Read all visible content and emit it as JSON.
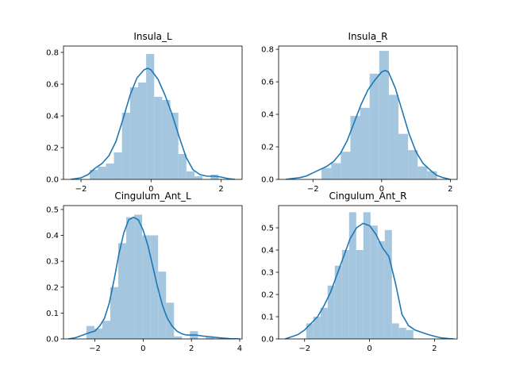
{
  "chart_data": [
    {
      "type": "bar",
      "title": "Insula_L",
      "xlim": [
        -2.5,
        2.6
      ],
      "ylim": [
        0,
        0.84
      ],
      "xticks": [
        -2,
        0,
        2
      ],
      "xtick_labels": [
        "−2",
        "0",
        "2"
      ],
      "yticks": [
        0.0,
        0.2,
        0.4,
        0.6,
        0.8
      ],
      "ytick_labels": [
        "0.0",
        "0.2",
        "0.4",
        "0.6",
        "0.8"
      ],
      "bar_color": "#a4c6df",
      "line_color": "#1f77b4",
      "bins": [
        {
          "x0": -1.75,
          "x1": -1.52,
          "value": 0.06
        },
        {
          "x0": -1.52,
          "x1": -1.29,
          "value": 0.08
        },
        {
          "x0": -1.29,
          "x1": -1.06,
          "value": 0.1
        },
        {
          "x0": -1.06,
          "x1": -0.83,
          "value": 0.17
        },
        {
          "x0": -0.83,
          "x1": -0.6,
          "value": 0.42
        },
        {
          "x0": -0.6,
          "x1": -0.37,
          "value": 0.58
        },
        {
          "x0": -0.37,
          "x1": -0.14,
          "value": 0.61
        },
        {
          "x0": -0.14,
          "x1": 0.09,
          "value": 0.79
        },
        {
          "x0": 0.09,
          "x1": 0.32,
          "value": 0.52
        },
        {
          "x0": 0.32,
          "x1": 0.55,
          "value": 0.5
        },
        {
          "x0": 0.55,
          "x1": 0.78,
          "value": 0.42
        },
        {
          "x0": 0.78,
          "x1": 1.01,
          "value": 0.16
        },
        {
          "x0": 1.01,
          "x1": 1.24,
          "value": 0.05
        },
        {
          "x0": 1.24,
          "x1": 1.47,
          "value": 0.02
        },
        {
          "x0": 1.47,
          "x1": 1.7,
          "value": 0.0
        },
        {
          "x0": 1.7,
          "x1": 1.93,
          "value": 0.03
        }
      ],
      "kde": {
        "x": [
          -2.3,
          -2.0,
          -1.8,
          -1.6,
          -1.4,
          -1.2,
          -1.0,
          -0.8,
          -0.6,
          -0.4,
          -0.2,
          -0.1,
          0.0,
          0.2,
          0.4,
          0.6,
          0.8,
          1.0,
          1.2,
          1.4,
          1.6,
          1.8,
          2.0,
          2.2,
          2.4
        ],
        "y": [
          0.0,
          0.01,
          0.03,
          0.07,
          0.1,
          0.15,
          0.24,
          0.38,
          0.53,
          0.64,
          0.69,
          0.7,
          0.69,
          0.63,
          0.53,
          0.41,
          0.27,
          0.14,
          0.06,
          0.03,
          0.02,
          0.02,
          0.015,
          0.005,
          0.0
        ]
      }
    },
    {
      "type": "bar",
      "title": "Insula_R",
      "xlim": [
        -3.0,
        2.2
      ],
      "ylim": [
        0,
        0.82
      ],
      "xticks": [
        -2,
        0,
        2
      ],
      "xtick_labels": [
        "−2",
        "0",
        "2"
      ],
      "yticks": [
        0.0,
        0.2,
        0.4,
        0.6,
        0.8
      ],
      "ytick_labels": [
        "0.0",
        "0.2",
        "0.4",
        "0.6",
        "0.8"
      ],
      "bar_color": "#a4c6df",
      "line_color": "#1f77b4",
      "bins": [
        {
          "x0": -1.75,
          "x1": -1.47,
          "value": 0.07
        },
        {
          "x0": -1.47,
          "x1": -1.19,
          "value": 0.1
        },
        {
          "x0": -1.19,
          "x1": -0.91,
          "value": 0.17
        },
        {
          "x0": -0.91,
          "x1": -0.63,
          "value": 0.39
        },
        {
          "x0": -0.63,
          "x1": -0.35,
          "value": 0.44
        },
        {
          "x0": -0.35,
          "x1": -0.07,
          "value": 0.65
        },
        {
          "x0": -0.07,
          "x1": 0.21,
          "value": 0.79
        },
        {
          "x0": 0.21,
          "x1": 0.49,
          "value": 0.52
        },
        {
          "x0": 0.49,
          "x1": 0.77,
          "value": 0.28
        },
        {
          "x0": 0.77,
          "x1": 1.05,
          "value": 0.18
        },
        {
          "x0": 1.05,
          "x1": 1.33,
          "value": 0.08
        },
        {
          "x0": 1.33,
          "x1": 1.61,
          "value": 0.05
        }
      ],
      "kde": {
        "x": [
          -2.8,
          -2.6,
          -2.4,
          -2.2,
          -2.0,
          -1.8,
          -1.6,
          -1.4,
          -1.2,
          -1.0,
          -0.8,
          -0.6,
          -0.4,
          -0.2,
          0.0,
          0.1,
          0.2,
          0.4,
          0.6,
          0.8,
          1.0,
          1.2,
          1.4,
          1.6,
          1.8,
          2.0
        ],
        "y": [
          0.0,
          0.005,
          0.01,
          0.02,
          0.04,
          0.06,
          0.08,
          0.11,
          0.16,
          0.24,
          0.35,
          0.46,
          0.55,
          0.61,
          0.66,
          0.67,
          0.66,
          0.56,
          0.42,
          0.28,
          0.17,
          0.1,
          0.06,
          0.025,
          0.01,
          0.0
        ]
      }
    },
    {
      "type": "bar",
      "title": "Cingulum_Ant_L",
      "xlim": [
        -3.3,
        4.1
      ],
      "ylim": [
        0,
        0.515
      ],
      "xticks": [
        -2,
        0,
        2,
        4
      ],
      "xtick_labels": [
        "−2",
        "0",
        "2",
        "4"
      ],
      "yticks": [
        0.0,
        0.1,
        0.2,
        0.3,
        0.4,
        0.5
      ],
      "ytick_labels": [
        "0.0",
        "0.1",
        "0.2",
        "0.3",
        "0.4",
        "0.5"
      ],
      "bar_color": "#a4c6df",
      "line_color": "#1f77b4",
      "bins": [
        {
          "x0": -2.35,
          "x1": -2.02,
          "value": 0.05
        },
        {
          "x0": -2.02,
          "x1": -1.69,
          "value": 0.04
        },
        {
          "x0": -1.69,
          "x1": -1.36,
          "value": 0.07
        },
        {
          "x0": -1.36,
          "x1": -1.03,
          "value": 0.2
        },
        {
          "x0": -1.03,
          "x1": -0.7,
          "value": 0.37
        },
        {
          "x0": -0.7,
          "x1": -0.37,
          "value": 0.47
        },
        {
          "x0": -0.37,
          "x1": -0.04,
          "value": 0.48
        },
        {
          "x0": -0.04,
          "x1": 0.29,
          "value": 0.4
        },
        {
          "x0": 0.29,
          "x1": 0.62,
          "value": 0.4
        },
        {
          "x0": 0.62,
          "x1": 0.95,
          "value": 0.26
        },
        {
          "x0": 0.95,
          "x1": 1.28,
          "value": 0.14
        },
        {
          "x0": 1.28,
          "x1": 1.61,
          "value": 0.01
        },
        {
          "x0": 1.61,
          "x1": 1.94,
          "value": 0.0
        },
        {
          "x0": 1.94,
          "x1": 2.27,
          "value": 0.03
        },
        {
          "x0": 2.27,
          "x1": 2.6,
          "value": 0.0
        },
        {
          "x0": 2.6,
          "x1": 2.93,
          "value": 0.01
        }
      ],
      "kde": {
        "x": [
          -3.1,
          -2.8,
          -2.5,
          -2.2,
          -2.0,
          -1.8,
          -1.6,
          -1.4,
          -1.2,
          -1.0,
          -0.8,
          -0.6,
          -0.4,
          -0.2,
          0.0,
          0.2,
          0.4,
          0.6,
          0.8,
          1.0,
          1.2,
          1.4,
          1.6,
          1.8,
          2.0,
          2.2,
          2.4,
          2.6,
          2.8,
          3.0,
          3.2,
          3.6,
          4.0
        ],
        "y": [
          0.0,
          0.005,
          0.015,
          0.025,
          0.03,
          0.05,
          0.08,
          0.14,
          0.23,
          0.33,
          0.41,
          0.46,
          0.47,
          0.46,
          0.42,
          0.36,
          0.28,
          0.2,
          0.13,
          0.08,
          0.05,
          0.03,
          0.02,
          0.015,
          0.015,
          0.015,
          0.012,
          0.01,
          0.008,
          0.006,
          0.004,
          0.001,
          0.0
        ]
      }
    },
    {
      "type": "bar",
      "title": "Cingulum_Ant_R",
      "xlim": [
        -2.8,
        2.7
      ],
      "ylim": [
        0,
        0.6
      ],
      "xticks": [
        -2,
        0,
        2
      ],
      "xtick_labels": [
        "−2",
        "0",
        "2"
      ],
      "yticks": [
        0.0,
        0.1,
        0.2,
        0.3,
        0.4,
        0.5
      ],
      "ytick_labels": [
        "0.0",
        "0.1",
        "0.2",
        "0.3",
        "0.4",
        "0.5"
      ],
      "bar_color": "#a4c6df",
      "line_color": "#1f77b4",
      "bins": [
        {
          "x0": -1.95,
          "x1": -1.73,
          "value": 0.07
        },
        {
          "x0": -1.73,
          "x1": -1.51,
          "value": 0.1
        },
        {
          "x0": -1.51,
          "x1": -1.29,
          "value": 0.14
        },
        {
          "x0": -1.29,
          "x1": -1.07,
          "value": 0.24
        },
        {
          "x0": -1.07,
          "x1": -0.85,
          "value": 0.33
        },
        {
          "x0": -0.85,
          "x1": -0.63,
          "value": 0.4
        },
        {
          "x0": -0.63,
          "x1": -0.41,
          "value": 0.57
        },
        {
          "x0": -0.41,
          "x1": -0.19,
          "value": 0.4
        },
        {
          "x0": -0.19,
          "x1": 0.03,
          "value": 0.57
        },
        {
          "x0": 0.03,
          "x1": 0.25,
          "value": 0.51
        },
        {
          "x0": 0.25,
          "x1": 0.47,
          "value": 0.44
        },
        {
          "x0": 0.47,
          "x1": 0.69,
          "value": 0.49
        },
        {
          "x0": 0.69,
          "x1": 0.91,
          "value": 0.07
        },
        {
          "x0": 0.91,
          "x1": 1.13,
          "value": 0.05
        },
        {
          "x0": 1.13,
          "x1": 1.35,
          "value": 0.04
        }
      ],
      "kde": {
        "x": [
          -2.6,
          -2.4,
          -2.2,
          -2.0,
          -1.8,
          -1.6,
          -1.4,
          -1.2,
          -1.0,
          -0.8,
          -0.6,
          -0.4,
          -0.2,
          0.0,
          0.2,
          0.4,
          0.6,
          0.8,
          1.0,
          1.2,
          1.4,
          1.6,
          1.8,
          2.0,
          2.2,
          2.4,
          2.6
        ],
        "y": [
          0.0,
          0.01,
          0.02,
          0.04,
          0.07,
          0.1,
          0.15,
          0.21,
          0.29,
          0.37,
          0.45,
          0.5,
          0.52,
          0.51,
          0.47,
          0.41,
          0.37,
          0.25,
          0.11,
          0.06,
          0.04,
          0.03,
          0.02,
          0.012,
          0.005,
          0.002,
          0.0
        ]
      }
    }
  ]
}
